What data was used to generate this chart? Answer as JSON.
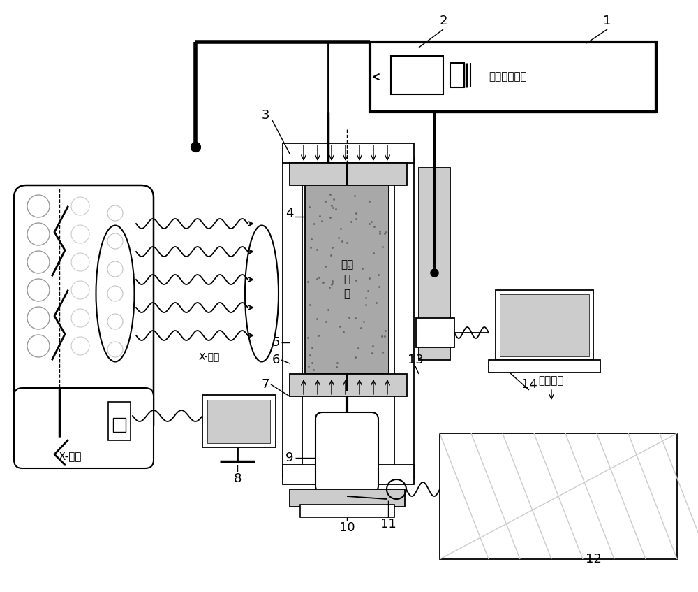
{
  "bg_color": "#ffffff",
  "lc": "#000000",
  "gc": "#999999",
  "lgc": "#cccccc",
  "rock_color": "#a0a0a0",
  "text_zengqiang": "增强影像功能",
  "text_xray_label": "X-射线",
  "text_xguangji": "X-光机",
  "text_yanshi": "岩石\n试\n样",
  "text_lianxu": "连续加载",
  "fontsize_label": 13,
  "fontsize_text": 11,
  "fontsize_small": 10
}
